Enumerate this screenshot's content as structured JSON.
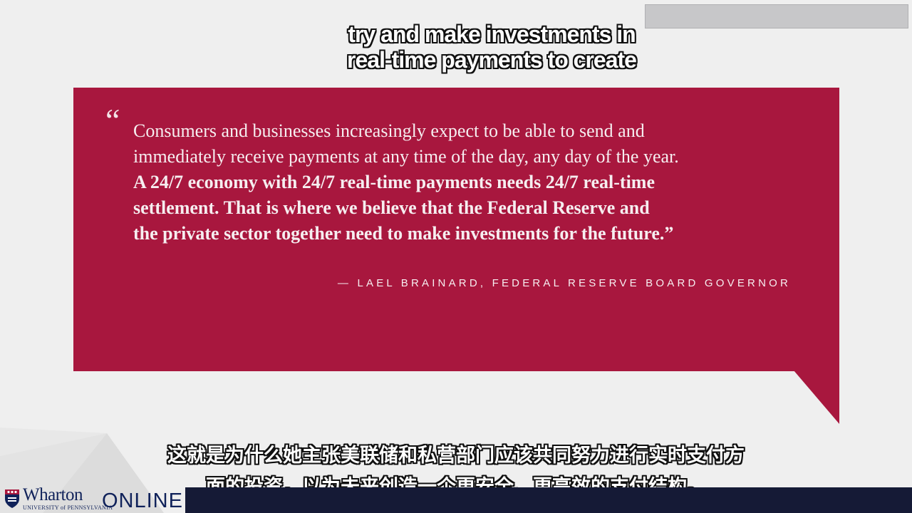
{
  "colors": {
    "background": "#efefef",
    "quote_box": "#a8173e",
    "quote_text": "#f6eef0",
    "caption_text": "#ffffff",
    "caption_outline": "#111111",
    "brand_navy": "#10225a",
    "bottom_strip": "#151a36"
  },
  "caption_en": {
    "lines": [
      "try and make investments in",
      "real-time payments to create"
    ]
  },
  "quote": {
    "open_mark": "“",
    "lines": [
      {
        "text": "Consumers and businesses increasingly expect to be able to send and",
        "bold": false
      },
      {
        "text": "immediately receive payments at any time of the day, any day of the year.",
        "bold": false
      },
      {
        "text": "A 24/7 economy with 24/7 real-time payments needs 24/7 real-time",
        "bold": true
      },
      {
        "text": "settlement. That is where we believe that the Federal Reserve and",
        "bold": true
      },
      {
        "text": "the private sector together need to make investments for the future.”",
        "bold": true
      }
    ],
    "attribution": "— LAEL BRAINARD, FEDERAL RESERVE BOARD GOVERNOR"
  },
  "caption_zh": {
    "lines": [
      "这就是为什么她主张美联储和私营部门应该共同努力进行实时支付方",
      "面的投资，以为未来创造一个更安全、更高效的支付结构。"
    ]
  },
  "logo": {
    "icon": "penn-shield-icon",
    "name": "Wharton",
    "subtitle": "UNIVERSITY of PENNSYLVANIA",
    "online": "ONLINE"
  }
}
